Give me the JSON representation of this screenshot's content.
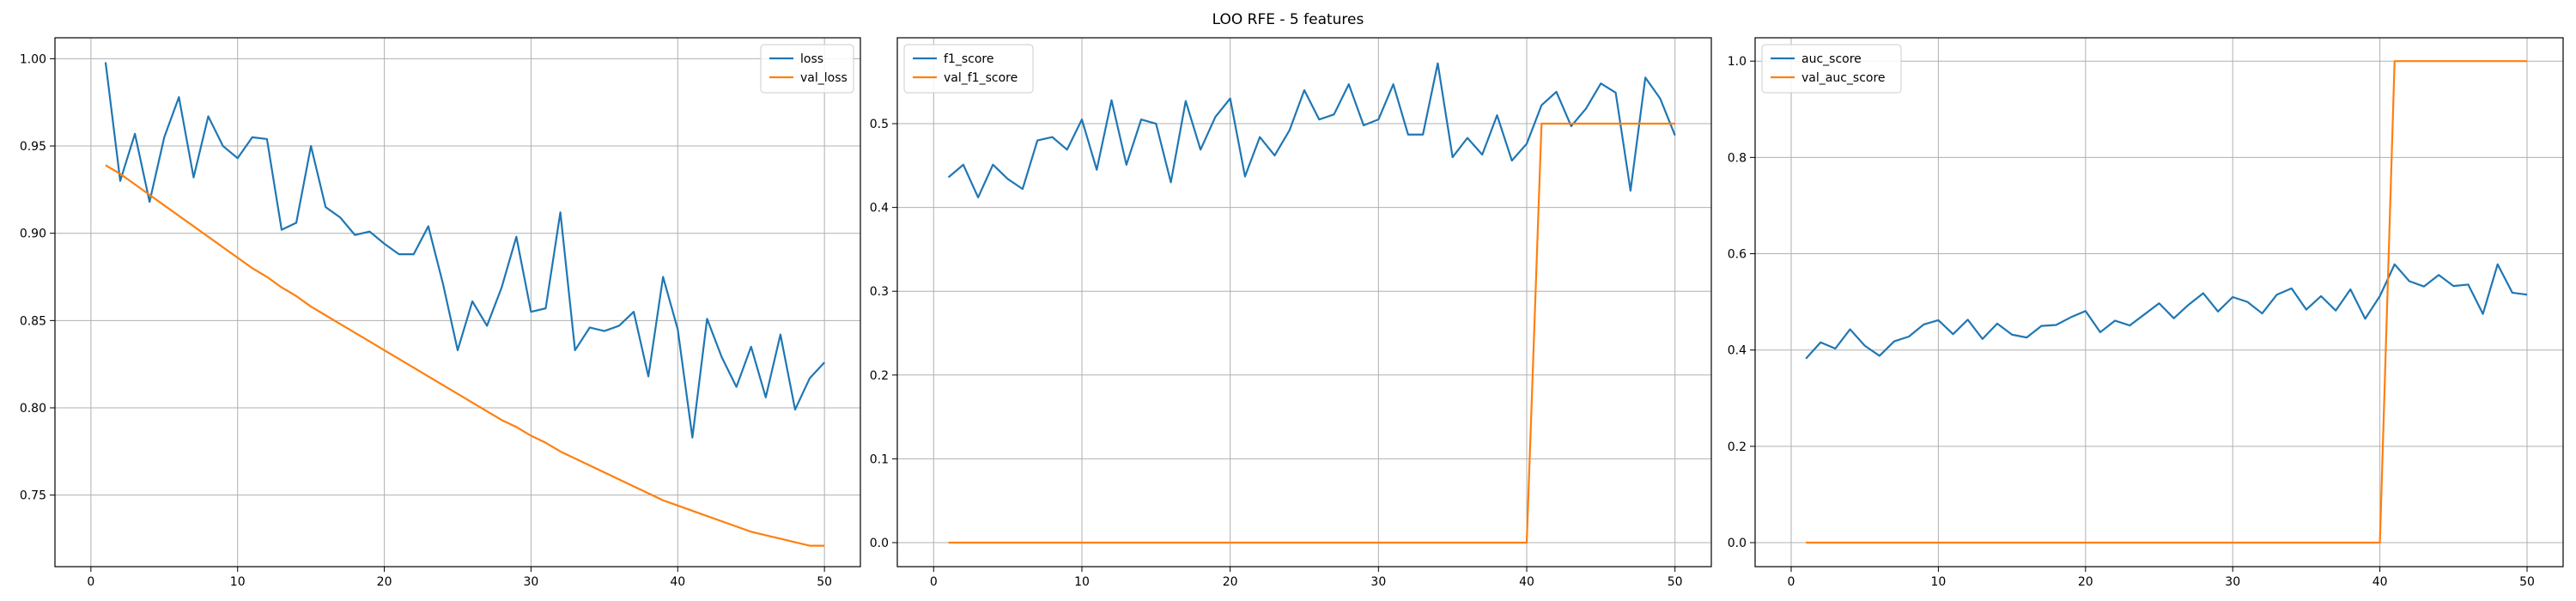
{
  "figure": {
    "title": "LOO RFE - 5 features"
  },
  "colors": {
    "train": "#1f77b4",
    "val": "#ff7f0e",
    "grid": "#b0b0b0",
    "axes": "#000000"
  },
  "chart_data": [
    {
      "type": "line",
      "title": "",
      "xlabel": "",
      "ylabel": "",
      "xlim": [
        -2.45,
        52.45
      ],
      "ylim": [
        0.709,
        1.012
      ],
      "xticks": [
        0,
        10,
        20,
        30,
        40,
        50
      ],
      "yticks": [
        0.75,
        0.8,
        0.85,
        0.9,
        0.95,
        1.0
      ],
      "ytick_labels": [
        "0.75",
        "0.80",
        "0.85",
        "0.90",
        "0.95",
        "1.00"
      ],
      "grid": true,
      "legend": "top-right",
      "x": [
        1,
        2,
        3,
        4,
        5,
        6,
        7,
        8,
        9,
        10,
        11,
        12,
        13,
        14,
        15,
        16,
        17,
        18,
        19,
        20,
        21,
        22,
        23,
        24,
        25,
        26,
        27,
        28,
        29,
        30,
        31,
        32,
        33,
        34,
        35,
        36,
        37,
        38,
        39,
        40,
        41,
        42,
        43,
        44,
        45,
        46,
        47,
        48,
        49,
        50
      ],
      "series": [
        {
          "name": "loss",
          "color": "#1f77b4",
          "values": [
            0.998,
            0.93,
            0.957,
            0.918,
            0.955,
            0.978,
            0.932,
            0.967,
            0.95,
            0.943,
            0.955,
            0.954,
            0.902,
            0.906,
            0.95,
            0.915,
            0.909,
            0.899,
            0.901,
            0.894,
            0.888,
            0.888,
            0.904,
            0.871,
            0.833,
            0.861,
            0.847,
            0.869,
            0.898,
            0.855,
            0.857,
            0.912,
            0.833,
            0.846,
            0.844,
            0.847,
            0.855,
            0.818,
            0.875,
            0.845,
            0.783,
            0.851,
            0.829,
            0.812,
            0.835,
            0.806,
            0.842,
            0.799,
            0.817,
            0.826
          ]
        },
        {
          "name": "val_loss",
          "color": "#ff7f0e",
          "values": [
            0.939,
            0.934,
            0.928,
            0.922,
            0.916,
            0.91,
            0.904,
            0.898,
            0.892,
            0.886,
            0.88,
            0.875,
            0.869,
            0.864,
            0.858,
            0.853,
            0.848,
            0.843,
            0.838,
            0.833,
            0.828,
            0.823,
            0.818,
            0.813,
            0.808,
            0.803,
            0.798,
            0.793,
            0.789,
            0.784,
            0.78,
            0.775,
            0.771,
            0.767,
            0.763,
            0.759,
            0.755,
            0.751,
            0.747,
            0.744,
            0.741,
            0.738,
            0.735,
            0.732,
            0.729,
            0.727,
            0.725,
            0.723,
            0.721,
            0.721
          ]
        }
      ]
    },
    {
      "type": "line",
      "title": "",
      "xlabel": "",
      "ylabel": "",
      "xlim": [
        -2.45,
        52.45
      ],
      "ylim": [
        -0.0287,
        0.6025
      ],
      "xticks": [
        0,
        10,
        20,
        30,
        40,
        50
      ],
      "yticks": [
        0.0,
        0.1,
        0.2,
        0.3,
        0.4,
        0.5
      ],
      "ytick_labels": [
        "0.0",
        "0.1",
        "0.2",
        "0.3",
        "0.4",
        "0.5"
      ],
      "grid": true,
      "legend": "top-left",
      "x": [
        1,
        2,
        3,
        4,
        5,
        6,
        7,
        8,
        9,
        10,
        11,
        12,
        13,
        14,
        15,
        16,
        17,
        18,
        19,
        20,
        21,
        22,
        23,
        24,
        25,
        26,
        27,
        28,
        29,
        30,
        31,
        32,
        33,
        34,
        35,
        36,
        37,
        38,
        39,
        40,
        41,
        42,
        43,
        44,
        45,
        46,
        47,
        48,
        49,
        50
      ],
      "series": [
        {
          "name": "f1_score",
          "color": "#1f77b4",
          "values": [
            0.436,
            0.451,
            0.412,
            0.451,
            0.434,
            0.422,
            0.48,
            0.484,
            0.469,
            0.505,
            0.445,
            0.528,
            0.451,
            0.505,
            0.5,
            0.43,
            0.527,
            0.469,
            0.508,
            0.53,
            0.437,
            0.484,
            0.462,
            0.492,
            0.54,
            0.505,
            0.511,
            0.547,
            0.498,
            0.505,
            0.547,
            0.487,
            0.487,
            0.572,
            0.46,
            0.483,
            0.463,
            0.51,
            0.456,
            0.476,
            0.522,
            0.538,
            0.497,
            0.518,
            0.548,
            0.537,
            0.42,
            0.555,
            0.53,
            0.486
          ]
        },
        {
          "name": "val_f1_score",
          "color": "#ff7f0e",
          "values": [
            0,
            0,
            0,
            0,
            0,
            0,
            0,
            0,
            0,
            0,
            0,
            0,
            0,
            0,
            0,
            0,
            0,
            0,
            0,
            0,
            0,
            0,
            0,
            0,
            0,
            0,
            0,
            0,
            0,
            0,
            0,
            0,
            0,
            0,
            0,
            0,
            0,
            0,
            0,
            0,
            0.5,
            0.5,
            0.5,
            0.5,
            0.5,
            0.5,
            0.5,
            0.5,
            0.5,
            0.5
          ]
        }
      ]
    },
    {
      "type": "line",
      "title": "",
      "xlabel": "",
      "ylabel": "",
      "xlim": [
        -2.45,
        52.45
      ],
      "ylim": [
        -0.0499,
        1.0485
      ],
      "xticks": [
        0,
        10,
        20,
        30,
        40,
        50
      ],
      "yticks": [
        0.0,
        0.2,
        0.4,
        0.6,
        0.8,
        1.0
      ],
      "ytick_labels": [
        "0.0",
        "0.2",
        "0.4",
        "0.6",
        "0.8",
        "1.0"
      ],
      "grid": true,
      "legend": "top-left",
      "x": [
        1,
        2,
        3,
        4,
        5,
        6,
        7,
        8,
        9,
        10,
        11,
        12,
        13,
        14,
        15,
        16,
        17,
        18,
        19,
        20,
        21,
        22,
        23,
        24,
        25,
        26,
        27,
        28,
        29,
        30,
        31,
        32,
        33,
        34,
        35,
        36,
        37,
        38,
        39,
        40,
        41,
        42,
        43,
        44,
        45,
        46,
        47,
        48,
        49,
        50
      ],
      "series": [
        {
          "name": "auc_score",
          "color": "#1f77b4",
          "values": [
            0.382,
            0.416,
            0.403,
            0.443,
            0.409,
            0.388,
            0.418,
            0.428,
            0.453,
            0.462,
            0.433,
            0.463,
            0.423,
            0.455,
            0.432,
            0.426,
            0.45,
            0.452,
            0.468,
            0.481,
            0.437,
            0.461,
            0.451,
            0.474,
            0.497,
            0.466,
            0.494,
            0.518,
            0.48,
            0.51,
            0.5,
            0.476,
            0.515,
            0.528,
            0.484,
            0.512,
            0.482,
            0.526,
            0.465,
            0.512,
            0.578,
            0.543,
            0.532,
            0.556,
            0.533,
            0.536,
            0.475,
            0.578,
            0.519,
            0.515
          ]
        },
        {
          "name": "val_auc_score",
          "color": "#ff7f0e",
          "values": [
            0,
            0,
            0,
            0,
            0,
            0,
            0,
            0,
            0,
            0,
            0,
            0,
            0,
            0,
            0,
            0,
            0,
            0,
            0,
            0,
            0,
            0,
            0,
            0,
            0,
            0,
            0,
            0,
            0,
            0,
            0,
            0,
            0,
            0,
            0,
            0,
            0,
            0,
            0,
            0,
            1,
            1,
            1,
            1,
            1,
            1,
            1,
            1,
            1,
            1
          ]
        }
      ]
    }
  ]
}
